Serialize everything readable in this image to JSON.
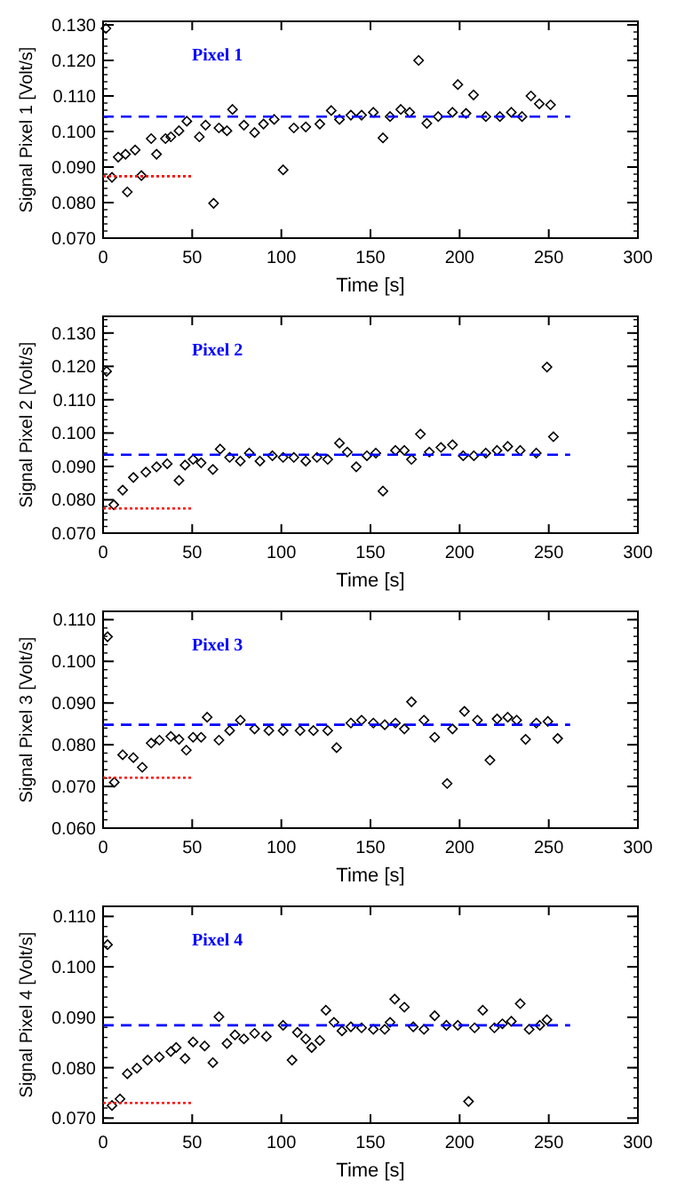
{
  "chart_data": [
    {
      "type": "scatter",
      "annotations": [
        "Pixel 1"
      ],
      "xlabel": "Time [s]",
      "ylabel": "Signal Pixel 1 [Volt/s]",
      "xlim": [
        0,
        300
      ],
      "xticks": [
        0,
        50,
        100,
        150,
        200,
        250,
        300
      ],
      "ylim": [
        0.07,
        0.131
      ],
      "yticks": [
        {
          "value": 0.07,
          "label": "0.070"
        },
        {
          "value": 0.08,
          "label": "0.080"
        },
        {
          "value": 0.09,
          "label": "0.090"
        },
        {
          "value": 0.1,
          "label": "0.100"
        },
        {
          "value": 0.11,
          "label": "0.110"
        },
        {
          "value": 0.12,
          "label": "0.120"
        },
        {
          "value": 0.13,
          "label": "0.130"
        }
      ],
      "series": [
        {
          "type": "scatter",
          "marker": "diamond",
          "color": "#000000",
          "x": [
            1.6,
            5,
            8.5,
            12.6,
            13.6,
            18,
            21.5,
            27,
            30,
            35,
            38,
            42.6,
            47,
            54,
            57.5,
            62,
            65,
            69.5,
            72.6,
            79,
            85,
            90,
            96,
            101,
            107,
            113.7,
            121.6,
            128,
            132.6,
            139,
            145,
            151.6,
            157,
            161,
            167,
            172,
            177,
            181.6,
            188,
            196,
            199,
            203.6,
            207.8,
            214.7,
            222.6,
            229,
            235,
            240,
            244.7,
            251
          ],
          "values": [
            0.129,
            0.0871,
            0.0928,
            0.0936,
            0.083,
            0.0948,
            0.0876,
            0.098,
            0.0936,
            0.098,
            0.0985,
            0.1002,
            0.1029,
            0.0985,
            0.1018,
            0.0798,
            0.101,
            0.1002,
            0.1062,
            0.1018,
            0.0997,
            0.1021,
            0.1034,
            0.0892,
            0.101,
            0.1013,
            0.1021,
            0.1059,
            0.1034,
            0.1046,
            0.1046,
            0.1054,
            0.0982,
            0.1042,
            0.1062,
            0.1054,
            0.12,
            0.1023,
            0.1042,
            0.1054,
            0.1132,
            0.1051,
            0.1103,
            0.1042,
            0.1042,
            0.1054,
            0.1042,
            0.11,
            0.1078,
            0.1075
          ]
        },
        {
          "type": "line",
          "line_style": "dashed",
          "color": "#0000ff",
          "x": [
            0,
            262
          ],
          "values": [
            0.1042,
            0.1042
          ]
        },
        {
          "type": "line",
          "line_style": "dotted",
          "color": "#ff0000",
          "x": [
            0,
            50
          ],
          "values": [
            0.0874,
            0.0874
          ]
        }
      ]
    },
    {
      "type": "scatter",
      "annotations": [
        "Pixel 2"
      ],
      "xlabel": "Time [s]",
      "ylabel": "Signal Pixel 2 [Volt/s]",
      "xlim": [
        0,
        300
      ],
      "xticks": [
        0,
        50,
        100,
        150,
        200,
        250,
        300
      ],
      "ylim": [
        0.07,
        0.135
      ],
      "yticks": [
        {
          "value": 0.07,
          "label": "0.070"
        },
        {
          "value": 0.08,
          "label": "0.080"
        },
        {
          "value": 0.09,
          "label": "0.090"
        },
        {
          "value": 0.1,
          "label": "0.100"
        },
        {
          "value": 0.11,
          "label": "0.110"
        },
        {
          "value": 0.12,
          "label": "0.120"
        },
        {
          "value": 0.13,
          "label": "0.130"
        }
      ],
      "series": [
        {
          "type": "scatter",
          "marker": "diamond",
          "color": "#000000",
          "x": [
            2,
            6,
            11,
            17,
            24,
            30,
            36,
            42.6,
            46,
            50.5,
            55,
            61.6,
            65.7,
            71,
            77,
            82,
            88,
            95,
            101,
            107,
            113.7,
            120,
            126,
            132.6,
            137,
            142,
            148,
            153,
            157,
            164,
            169,
            173,
            178,
            183,
            189.5,
            196,
            202,
            208,
            214.7,
            221,
            227,
            234,
            243,
            249,
            252.6
          ],
          "values": [
            0.1185,
            0.0785,
            0.0829,
            0.0867,
            0.0883,
            0.0899,
            0.0908,
            0.0858,
            0.0904,
            0.0921,
            0.0911,
            0.0891,
            0.0952,
            0.0927,
            0.0916,
            0.094,
            0.0916,
            0.0932,
            0.0927,
            0.0927,
            0.0916,
            0.0927,
            0.0921,
            0.097,
            0.0943,
            0.0899,
            0.0932,
            0.094,
            0.0826,
            0.0948,
            0.0948,
            0.0921,
            0.0997,
            0.0943,
            0.0957,
            0.0965,
            0.0932,
            0.0932,
            0.094,
            0.0948,
            0.096,
            0.0948,
            0.094,
            0.1198,
            0.0989
          ]
        },
        {
          "type": "line",
          "line_style": "dashed",
          "color": "#0000ff",
          "x": [
            0,
            262
          ],
          "values": [
            0.0935,
            0.0935
          ]
        },
        {
          "type": "line",
          "line_style": "dotted",
          "color": "#ff0000",
          "x": [
            0,
            50
          ],
          "values": [
            0.0774,
            0.0774
          ]
        }
      ]
    },
    {
      "type": "scatter",
      "annotations": [
        "Pixel 3"
      ],
      "xlabel": "Time [s]",
      "ylabel": "Signal Pixel 3 [Volt/s]",
      "xlim": [
        0,
        300
      ],
      "xticks": [
        0,
        50,
        100,
        150,
        200,
        250,
        300
      ],
      "ylim": [
        0.06,
        0.112
      ],
      "yticks": [
        {
          "value": 0.06,
          "label": "0.060"
        },
        {
          "value": 0.07,
          "label": "0.070"
        },
        {
          "value": 0.08,
          "label": "0.080"
        },
        {
          "value": 0.09,
          "label": "0.090"
        },
        {
          "value": 0.1,
          "label": "0.100"
        },
        {
          "value": 0.11,
          "label": "0.110"
        }
      ],
      "series": [
        {
          "type": "scatter",
          "marker": "diamond",
          "color": "#000000",
          "x": [
            2.5,
            6.3,
            11,
            17,
            22,
            27,
            31.6,
            38,
            42.6,
            46.7,
            50.5,
            55,
            58.4,
            65,
            71,
            77,
            85,
            93,
            101,
            110.5,
            118,
            126,
            131,
            139,
            145,
            151.6,
            158,
            164,
            169,
            173,
            180,
            186,
            193,
            196,
            202.7,
            210,
            217,
            221,
            227,
            232,
            237,
            243,
            249.5,
            255
          ],
          "values": [
            0.1059,
            0.071,
            0.0776,
            0.0769,
            0.0746,
            0.0804,
            0.0811,
            0.082,
            0.0813,
            0.0787,
            0.0818,
            0.0818,
            0.0866,
            0.0811,
            0.0834,
            0.0859,
            0.0838,
            0.0834,
            0.0834,
            0.0834,
            0.0834,
            0.0834,
            0.0793,
            0.0852,
            0.0859,
            0.0852,
            0.0848,
            0.0852,
            0.0838,
            0.0903,
            0.0859,
            0.0818,
            0.0707,
            0.0838,
            0.088,
            0.0859,
            0.0763,
            0.0862,
            0.0866,
            0.0859,
            0.0813,
            0.0852,
            0.0856,
            0.0815
          ]
        },
        {
          "type": "line",
          "line_style": "dashed",
          "color": "#0000ff",
          "x": [
            0,
            262
          ],
          "values": [
            0.0848,
            0.0848
          ]
        },
        {
          "type": "line",
          "line_style": "dotted",
          "color": "#ff0000",
          "x": [
            0,
            50
          ],
          "values": [
            0.0721,
            0.0721
          ]
        }
      ]
    },
    {
      "type": "scatter",
      "annotations": [
        "Pixel 4"
      ],
      "xlabel": "Time [s]",
      "ylabel": "Signal Pixel 4 [Volt/s]",
      "xlim": [
        0,
        300
      ],
      "xticks": [
        0,
        50,
        100,
        150,
        200,
        250,
        300
      ],
      "ylim": [
        0.069,
        0.112
      ],
      "yticks": [
        {
          "value": 0.07,
          "label": "0.070"
        },
        {
          "value": 0.08,
          "label": "0.080"
        },
        {
          "value": 0.09,
          "label": "0.090"
        },
        {
          "value": 0.1,
          "label": "0.100"
        },
        {
          "value": 0.11,
          "label": "0.110"
        }
      ],
      "series": [
        {
          "type": "scatter",
          "marker": "diamond",
          "color": "#000000",
          "x": [
            2.5,
            5,
            9.5,
            13.6,
            19,
            25,
            31.6,
            38,
            41,
            46,
            50.5,
            57,
            61.6,
            65,
            69.5,
            74,
            79,
            85,
            91.6,
            101,
            106,
            109,
            113.7,
            117,
            121.6,
            125,
            129.5,
            134,
            139,
            145,
            151.6,
            158,
            161,
            163.6,
            169,
            174,
            180,
            186,
            192.6,
            199,
            205,
            208.4,
            213,
            219.5,
            224,
            229,
            234,
            239,
            245,
            249
          ],
          "values": [
            0.1044,
            0.0725,
            0.0738,
            0.0788,
            0.0799,
            0.0815,
            0.0821,
            0.0832,
            0.084,
            0.0818,
            0.0851,
            0.0843,
            0.081,
            0.0901,
            0.0848,
            0.0865,
            0.0857,
            0.0868,
            0.0862,
            0.0884,
            0.0815,
            0.087,
            0.0857,
            0.084,
            0.0854,
            0.0914,
            0.089,
            0.0873,
            0.0881,
            0.0879,
            0.0876,
            0.0876,
            0.089,
            0.0936,
            0.092,
            0.0881,
            0.0876,
            0.0903,
            0.0884,
            0.0884,
            0.0733,
            0.0879,
            0.0914,
            0.0879,
            0.0887,
            0.0892,
            0.0927,
            0.0876,
            0.0884,
            0.0895
          ]
        },
        {
          "type": "line",
          "line_style": "dashed",
          "color": "#0000ff",
          "x": [
            0,
            262
          ],
          "values": [
            0.0884,
            0.0884
          ]
        },
        {
          "type": "line",
          "line_style": "dotted",
          "color": "#ff0000",
          "x": [
            0,
            50
          ],
          "values": [
            0.073,
            0.073
          ]
        }
      ]
    }
  ]
}
